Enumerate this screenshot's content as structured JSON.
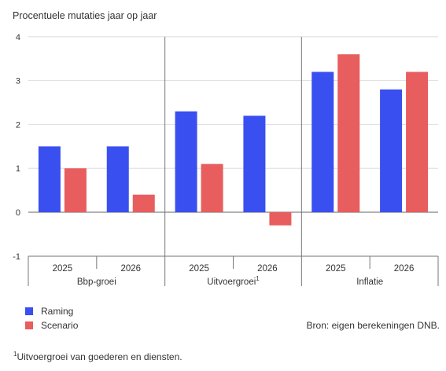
{
  "chart_data": {
    "type": "bar",
    "title": "Procentuele mutaties jaar op jaar",
    "ylim": [
      -1,
      4
    ],
    "yticks": [
      "-1",
      "0",
      "1",
      "2",
      "3",
      "4"
    ],
    "groups": [
      {
        "name": "Bbp-groei",
        "categories": [
          "2025",
          "2026"
        ]
      },
      {
        "name": "Uitvoergroei",
        "superscript": "1",
        "categories": [
          "2025",
          "2026"
        ]
      },
      {
        "name": "Inflatie",
        "categories": [
          "2025",
          "2026"
        ]
      }
    ],
    "series": [
      {
        "name": "Raming",
        "color": "#3a4ff0",
        "values": [
          1.5,
          1.5,
          2.3,
          2.2,
          3.2,
          2.8
        ]
      },
      {
        "name": "Scenario",
        "color": "#e85d5d",
        "values": [
          1.0,
          0.4,
          1.1,
          -0.3,
          3.6,
          3.2
        ]
      }
    ],
    "grid": true,
    "legend_position": "bottom-left"
  },
  "source": "Bron: eigen berekeningen DNB.",
  "footnote": {
    "marker": "1",
    "text": "Uitvoergroei van goederen en diensten."
  }
}
